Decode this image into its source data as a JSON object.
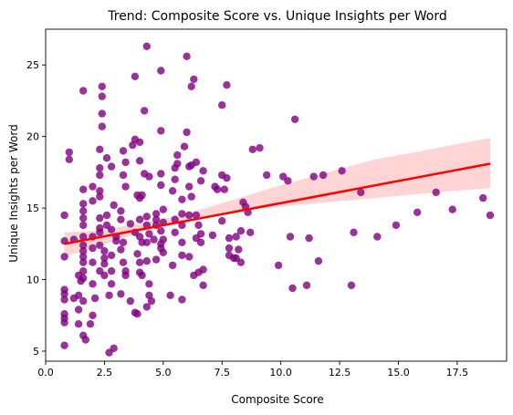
{
  "chart_data": {
    "type": "scatter",
    "title": "Trend: Composite Score vs. Unique Insights per Word",
    "xlabel": "Composite Score",
    "ylabel": "Unique Insights per Word",
    "xlim": [
      0,
      19.6
    ],
    "ylim": [
      4.3,
      27.5
    ],
    "xticks": [
      "0.0",
      "2.5",
      "5.0",
      "7.5",
      "10.0",
      "12.5",
      "15.0",
      "17.5"
    ],
    "yticks": [
      "5",
      "10",
      "15",
      "20",
      "25"
    ],
    "grid": false,
    "legend": "none",
    "point_color": "#800080",
    "trend_color": "#ff0000",
    "band_color": "#ffcccc",
    "trend_line": {
      "x": [
        0.8,
        18.9
      ],
      "y": [
        12.5,
        18.1
      ]
    },
    "confidence_band": {
      "x": [
        0.8,
        2,
        4,
        6,
        8,
        10,
        12,
        14,
        16,
        18.9
      ],
      "lower": [
        11.6,
        12.2,
        13.3,
        14.2,
        14.8,
        15.1,
        15.4,
        15.7,
        16.0,
        16.4
      ],
      "upper": [
        13.3,
        13.4,
        13.9,
        14.6,
        15.6,
        16.6,
        17.5,
        18.4,
        19.0,
        19.9
      ]
    },
    "points": [
      [
        0.8,
        5.4
      ],
      [
        0.8,
        7.0
      ],
      [
        0.8,
        7.3
      ],
      [
        0.8,
        7.6
      ],
      [
        0.8,
        8.6
      ],
      [
        0.8,
        9.0
      ],
      [
        0.8,
        9.3
      ],
      [
        0.8,
        11.6
      ],
      [
        0.8,
        12.7
      ],
      [
        0.8,
        14.5
      ],
      [
        1.0,
        18.4
      ],
      [
        1.0,
        18.9
      ],
      [
        1.2,
        8.7
      ],
      [
        1.2,
        12.8
      ],
      [
        1.4,
        6.9
      ],
      [
        1.4,
        7.9
      ],
      [
        1.4,
        8.9
      ],
      [
        1.4,
        10.3
      ],
      [
        1.5,
        9.9
      ],
      [
        1.6,
        6.1
      ],
      [
        1.6,
        8.5
      ],
      [
        1.6,
        10.1
      ],
      [
        1.6,
        10.6
      ],
      [
        1.6,
        11.2
      ],
      [
        1.6,
        11.6
      ],
      [
        1.6,
        12.0
      ],
      [
        1.6,
        12.4
      ],
      [
        1.6,
        13.0
      ],
      [
        1.6,
        13.8
      ],
      [
        1.6,
        14.3
      ],
      [
        1.6,
        14.8
      ],
      [
        1.6,
        15.3
      ],
      [
        1.6,
        16.3
      ],
      [
        1.6,
        23.2
      ],
      [
        1.7,
        5.8
      ],
      [
        1.9,
        6.9
      ],
      [
        2.0,
        7.5
      ],
      [
        2.0,
        9.7
      ],
      [
        2.0,
        11.2
      ],
      [
        2.0,
        12.2
      ],
      [
        2.0,
        13.0
      ],
      [
        2.0,
        15.5
      ],
      [
        2.0,
        16.5
      ],
      [
        2.1,
        8.7
      ],
      [
        2.3,
        10.6
      ],
      [
        2.3,
        12.4
      ],
      [
        2.3,
        13.3
      ],
      [
        2.3,
        13.6
      ],
      [
        2.3,
        14.3
      ],
      [
        2.3,
        15.8
      ],
      [
        2.3,
        16.2
      ],
      [
        2.3,
        17.3
      ],
      [
        2.3,
        17.8
      ],
      [
        2.3,
        19.1
      ],
      [
        2.4,
        20.7
      ],
      [
        2.4,
        21.6
      ],
      [
        2.4,
        22.8
      ],
      [
        2.4,
        23.5
      ],
      [
        2.5,
        10.3
      ],
      [
        2.5,
        11.1
      ],
      [
        2.5,
        11.5
      ],
      [
        2.5,
        12.0
      ],
      [
        2.6,
        13.8
      ],
      [
        2.6,
        14.5
      ],
      [
        2.6,
        18.5
      ],
      [
        2.7,
        4.9
      ],
      [
        2.7,
        8.9
      ],
      [
        2.8,
        9.7
      ],
      [
        2.8,
        10.6
      ],
      [
        2.8,
        11.7
      ],
      [
        2.8,
        13.5
      ],
      [
        2.8,
        17.9
      ],
      [
        2.9,
        5.2
      ],
      [
        2.9,
        15.2
      ],
      [
        3.0,
        12.7
      ],
      [
        3.0,
        13.0
      ],
      [
        3.2,
        9.0
      ],
      [
        3.2,
        12.1
      ],
      [
        3.2,
        14.2
      ],
      [
        3.2,
        14.8
      ],
      [
        3.3,
        11.2
      ],
      [
        3.3,
        12.6
      ],
      [
        3.3,
        17.3
      ],
      [
        3.3,
        19.0
      ],
      [
        3.4,
        10.3
      ],
      [
        3.4,
        10.6
      ],
      [
        3.4,
        16.5
      ],
      [
        3.4,
        18.2
      ],
      [
        3.6,
        8.5
      ],
      [
        3.6,
        13.9
      ],
      [
        3.7,
        19.4
      ],
      [
        3.8,
        7.7
      ],
      [
        3.8,
        13.3
      ],
      [
        3.8,
        19.8
      ],
      [
        3.8,
        24.2
      ],
      [
        3.9,
        7.6
      ],
      [
        3.9,
        11.8
      ],
      [
        3.9,
        15.9
      ],
      [
        4.0,
        10.5
      ],
      [
        4.0,
        11.2
      ],
      [
        4.0,
        13.0
      ],
      [
        4.0,
        14.2
      ],
      [
        4.0,
        15.7
      ],
      [
        4.0,
        18.3
      ],
      [
        4.0,
        19.6
      ],
      [
        4.1,
        10.3
      ],
      [
        4.1,
        12.6
      ],
      [
        4.1,
        15.9
      ],
      [
        4.2,
        17.4
      ],
      [
        4.2,
        21.8
      ],
      [
        4.3,
        8.1
      ],
      [
        4.3,
        11.3
      ],
      [
        4.3,
        12.6
      ],
      [
        4.3,
        13.8
      ],
      [
        4.3,
        14.4
      ],
      [
        4.3,
        26.3
      ],
      [
        4.4,
        8.9
      ],
      [
        4.4,
        9.7
      ],
      [
        4.4,
        13.2
      ],
      [
        4.4,
        17.2
      ],
      [
        4.5,
        8.5
      ],
      [
        4.6,
        12.8
      ],
      [
        4.7,
        11.4
      ],
      [
        4.7,
        13.8
      ],
      [
        4.7,
        14.2
      ],
      [
        4.7,
        14.6
      ],
      [
        4.9,
        12.2
      ],
      [
        4.9,
        12.5
      ],
      [
        4.9,
        13.4
      ],
      [
        4.9,
        16.6
      ],
      [
        4.9,
        17.4
      ],
      [
        4.9,
        20.4
      ],
      [
        4.9,
        24.6
      ],
      [
        5.0,
        11.9
      ],
      [
        5.0,
        12.8
      ],
      [
        5.0,
        14.0
      ],
      [
        5.0,
        14.9
      ],
      [
        5.3,
        8.9
      ],
      [
        5.4,
        11.0
      ],
      [
        5.4,
        16.2
      ],
      [
        5.5,
        13.3
      ],
      [
        5.5,
        14.2
      ],
      [
        5.5,
        17.0
      ],
      [
        5.5,
        17.8
      ],
      [
        5.6,
        18.1
      ],
      [
        5.6,
        18.7
      ],
      [
        5.8,
        8.6
      ],
      [
        5.8,
        11.7
      ],
      [
        5.8,
        12.6
      ],
      [
        5.8,
        13.8
      ],
      [
        5.8,
        14.6
      ],
      [
        5.8,
        15.6
      ],
      [
        5.9,
        19.3
      ],
      [
        6.0,
        25.6
      ],
      [
        6.0,
        20.3
      ],
      [
        6.1,
        11.6
      ],
      [
        6.1,
        14.5
      ],
      [
        6.1,
        16.5
      ],
      [
        6.1,
        17.9
      ],
      [
        6.2,
        15.8
      ],
      [
        6.2,
        18.0
      ],
      [
        6.2,
        23.5
      ],
      [
        6.3,
        10.3
      ],
      [
        6.3,
        24.0
      ],
      [
        6.4,
        12.9
      ],
      [
        6.4,
        14.5
      ],
      [
        6.4,
        18.2
      ],
      [
        6.5,
        10.5
      ],
      [
        6.5,
        13.8
      ],
      [
        6.6,
        12.6
      ],
      [
        6.6,
        13.2
      ],
      [
        6.6,
        16.9
      ],
      [
        6.7,
        9.6
      ],
      [
        6.7,
        10.7
      ],
      [
        6.7,
        17.6
      ],
      [
        7.1,
        13.1
      ],
      [
        7.2,
        16.5
      ],
      [
        7.3,
        16.3
      ],
      [
        7.5,
        22.2
      ],
      [
        7.5,
        14.1
      ],
      [
        7.5,
        17.3
      ],
      [
        7.6,
        16.3
      ],
      [
        7.7,
        23.6
      ],
      [
        7.7,
        17.1
      ],
      [
        7.8,
        11.7
      ],
      [
        7.8,
        12.2
      ],
      [
        7.8,
        12.9
      ],
      [
        8.0,
        11.5
      ],
      [
        8.1,
        11.5
      ],
      [
        8.1,
        13.0
      ],
      [
        8.2,
        12.1
      ],
      [
        8.3,
        11.2
      ],
      [
        8.3,
        13.4
      ],
      [
        8.4,
        15.4
      ],
      [
        8.5,
        15.1
      ],
      [
        8.6,
        14.7
      ],
      [
        8.7,
        13.3
      ],
      [
        8.8,
        19.1
      ],
      [
        9.1,
        19.2
      ],
      [
        9.4,
        17.3
      ],
      [
        9.9,
        11.0
      ],
      [
        10.1,
        17.2
      ],
      [
        10.3,
        16.9
      ],
      [
        10.4,
        13.0
      ],
      [
        10.5,
        9.4
      ],
      [
        10.6,
        21.2
      ],
      [
        11.1,
        9.6
      ],
      [
        11.2,
        12.9
      ],
      [
        11.4,
        17.2
      ],
      [
        11.6,
        11.3
      ],
      [
        11.8,
        17.3
      ],
      [
        12.6,
        17.6
      ],
      [
        13.0,
        9.6
      ],
      [
        13.1,
        13.3
      ],
      [
        13.4,
        16.1
      ],
      [
        14.1,
        13.0
      ],
      [
        14.9,
        13.8
      ],
      [
        15.8,
        14.7
      ],
      [
        16.6,
        16.1
      ],
      [
        17.3,
        14.9
      ],
      [
        18.6,
        15.7
      ],
      [
        18.9,
        14.5
      ]
    ]
  }
}
